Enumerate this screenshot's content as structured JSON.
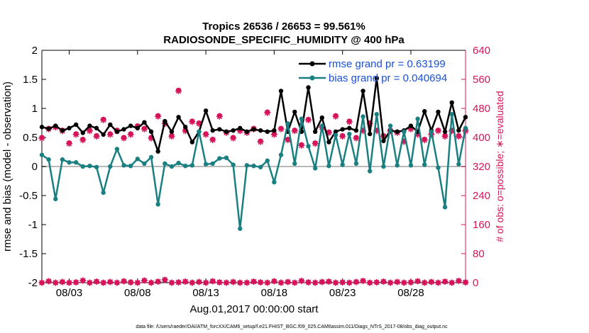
{
  "chart_data": {
    "type": "line",
    "title": "Tropics 26536 / 26653 = 99.561%",
    "subtitle": "RADIOSONDE_SPECIFIC_HUMIDITY @ 400 hPa",
    "xlabel": "Aug.01,2017 00:00:00 start",
    "ylabel": "rmse and bias (model - observation)",
    "ylabel_right": "# of obs: o=possible; ∗=evaluated",
    "footnote": "data file: /Users/raeder/DAI/ATM_forcXX/CAM6_setup/f.e21.FHIST_BGC.f09_025.CAM6assim.011/Diags_NTrS_2017-08/obs_diag_output.nc",
    "xlim": [
      1.0,
      32.0
    ],
    "ylim": [
      -2,
      2
    ],
    "ylim_right": [
      0,
      640
    ],
    "xticks": [
      3,
      8,
      13,
      18,
      23,
      28
    ],
    "xtick_labels": [
      "08/03",
      "08/08",
      "08/13",
      "08/18",
      "08/23",
      "08/28"
    ],
    "yticks": [
      -2,
      -1.5,
      -1,
      -0.5,
      0,
      0.5,
      1,
      1.5,
      2
    ],
    "ytick_labels": [
      "-2",
      "-1.5",
      "-1",
      "-0.5",
      "0",
      "0.5",
      "1",
      "1.5",
      "2"
    ],
    "yticks_right": [
      0,
      80,
      160,
      240,
      320,
      400,
      480,
      560,
      640
    ],
    "ytick_labels_right": [
      "0",
      "80",
      "160",
      "240",
      "320",
      "400",
      "480",
      "560",
      "640"
    ],
    "x": [
      1.0,
      1.5,
      2.0,
      2.5,
      3.0,
      3.5,
      4.0,
      4.5,
      5.0,
      5.5,
      6.0,
      6.5,
      7.0,
      7.5,
      8.0,
      8.5,
      9.0,
      9.5,
      10.0,
      10.5,
      11.0,
      11.5,
      12.0,
      12.5,
      13.0,
      13.5,
      14.0,
      14.5,
      15.0,
      15.5,
      16.0,
      16.5,
      17.0,
      17.5,
      18.0,
      18.5,
      19.0,
      19.5,
      20.0,
      20.5,
      21.0,
      21.5,
      22.0,
      22.5,
      23.0,
      23.5,
      24.0,
      24.5,
      25.0,
      25.5,
      26.0,
      26.5,
      27.0,
      27.5,
      28.0,
      28.5,
      29.0,
      29.5,
      30.0,
      30.5,
      31.0,
      31.5,
      32.0
    ],
    "series": [
      {
        "name": "rmse grand pr = 0.63199",
        "color": "#000000",
        "axis": "left",
        "values": [
          0.68,
          0.65,
          0.7,
          0.62,
          0.66,
          0.72,
          0.58,
          0.7,
          0.66,
          0.55,
          0.72,
          0.6,
          0.64,
          0.7,
          0.66,
          0.76,
          0.6,
          0.26,
          0.78,
          0.6,
          0.85,
          0.68,
          0.42,
          0.6,
          0.96,
          0.62,
          0.64,
          0.6,
          0.62,
          0.66,
          0.6,
          0.64,
          0.62,
          0.6,
          0.62,
          1.3,
          0.6,
          0.94,
          0.6,
          1.36,
          0.6,
          0.84,
          0.42,
          0.6,
          0.64,
          0.66,
          0.62,
          1.3,
          0.56,
          1.52,
          0.44,
          0.62,
          0.6,
          0.62,
          0.7,
          0.6,
          0.95,
          0.62,
          0.94,
          0.6,
          1.1,
          0.62,
          0.85
        ]
      },
      {
        "name": "bias grand pr = 0.040694",
        "color": "#1a7f80",
        "axis": "left",
        "values": [
          0.2,
          0.12,
          -0.56,
          0.12,
          0.07,
          0.07,
          0.0,
          0.01,
          -0.01,
          -0.45,
          0.0,
          0.3,
          0.02,
          0.01,
          0.13,
          0.05,
          0.16,
          -0.65,
          0.05,
          0.0,
          0.06,
          0.01,
          0.02,
          0.6,
          0.04,
          0.05,
          0.14,
          0.15,
          0.03,
          -1.07,
          0.02,
          0.01,
          -0.01,
          0.1,
          -0.27,
          0.2,
          0.74,
          0.05,
          0.82,
          0.35,
          -0.03,
          0.7,
          0.01,
          0.54,
          0.03,
          0.56,
          0.05,
          0.86,
          -0.08,
          0.9,
          0.0,
          0.7,
          0.02,
          0.6,
          0.02,
          0.82,
          0.03,
          0.6,
          -0.02,
          -0.7,
          0.9,
          0.04,
          0.66
        ]
      },
      {
        "name": "possible",
        "color": "#d6145a",
        "axis": "right",
        "marker": "circle",
        "values": [
          400,
          425,
          430,
          420,
          385,
          410,
          395,
          420,
          405,
          450,
          410,
          420,
          400,
          410,
          432,
          425,
          400,
          460,
          440,
          405,
          530,
          420,
          445,
          440,
          410,
          395,
          460,
          415,
          400,
          420,
          415,
          425,
          390,
          470,
          410,
          425,
          395,
          420,
          380,
          450,
          385,
          430,
          415,
          460,
          405,
          445,
          400,
          420,
          440,
          420,
          405,
          420,
          415,
          390,
          425,
          410,
          395,
          410,
          420,
          405,
          420,
          405,
          420
        ]
      },
      {
        "name": "evaluated",
        "color": "#d6145a",
        "axis": "right",
        "marker": "asterisk",
        "values": [
          398,
          423,
          428,
          418,
          383,
          408,
          393,
          418,
          403,
          448,
          408,
          418,
          398,
          408,
          430,
          423,
          398,
          458,
          438,
          403,
          528,
          418,
          443,
          438,
          408,
          393,
          458,
          413,
          398,
          418,
          413,
          423,
          388,
          468,
          408,
          423,
          393,
          418,
          378,
          448,
          383,
          428,
          413,
          458,
          403,
          443,
          398,
          418,
          438,
          418,
          403,
          418,
          413,
          388,
          423,
          408,
          393,
          408,
          418,
          403,
          418,
          403,
          418
        ]
      },
      {
        "name": "possible_low",
        "color": "#d6145a",
        "axis": "right",
        "marker": "circle",
        "values": [
          0,
          4,
          0,
          2,
          0,
          1,
          6,
          0,
          3,
          0,
          2,
          0,
          4,
          1,
          0,
          6,
          0,
          3,
          8,
          0,
          1,
          3,
          0,
          2,
          0,
          4,
          1,
          0,
          2,
          0,
          0,
          3,
          1,
          0,
          4,
          0,
          2,
          0,
          5,
          1,
          0,
          2,
          3,
          0,
          1,
          0,
          2,
          5,
          0,
          1,
          3,
          0,
          2,
          0,
          1,
          4,
          0,
          2,
          0,
          3,
          0,
          5,
          1
        ]
      },
      {
        "name": "evaluated_low",
        "color": "#d6145a",
        "axis": "right",
        "marker": "asterisk",
        "values": [
          0,
          4,
          0,
          2,
          0,
          1,
          6,
          0,
          3,
          0,
          2,
          0,
          4,
          1,
          0,
          6,
          0,
          3,
          8,
          0,
          1,
          3,
          0,
          2,
          0,
          4,
          1,
          0,
          2,
          0,
          0,
          3,
          1,
          0,
          4,
          0,
          2,
          0,
          5,
          1,
          0,
          2,
          3,
          0,
          1,
          0,
          2,
          5,
          0,
          1,
          3,
          0,
          2,
          0,
          1,
          4,
          0,
          2,
          0,
          3,
          0,
          5,
          1
        ]
      }
    ],
    "legend": [
      {
        "label": "rmse grand pr = 0.63199",
        "color": "#000000"
      },
      {
        "label": "bias grand pr = 0.040694",
        "color": "#1a7f80"
      }
    ],
    "legend_position": "top-right",
    "zero_line": true,
    "grid": false
  }
}
